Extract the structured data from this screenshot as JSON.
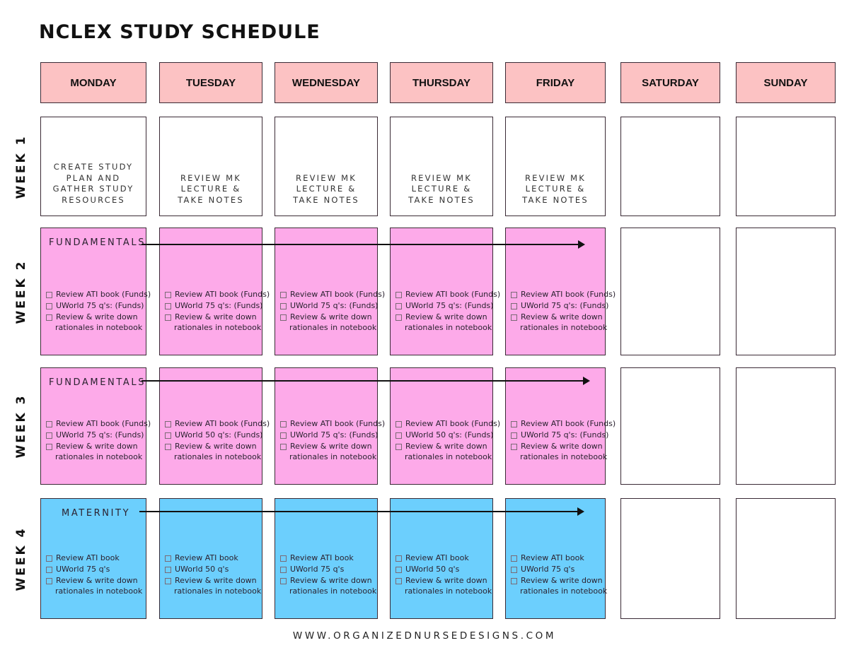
{
  "title": "NCLEX STUDY SCHEDULE",
  "days": [
    "MONDAY",
    "TUESDAY",
    "WEDNESDAY",
    "THURSDAY",
    "FRIDAY",
    "SATURDAY",
    "SUNDAY"
  ],
  "colors": {
    "header": "#fcc2c3",
    "fundamentals": "#fdaae9",
    "maternity": "#6ccffd",
    "border": "#3a2a35"
  },
  "weeks": [
    {
      "label": "WEEK 1",
      "cells": [
        {
          "text": [
            "CREATE STUDY",
            "PLAN AND",
            "GATHER STUDY",
            "RESOURCES"
          ]
        },
        {
          "text": [
            "REVIEW MK",
            "LECTURE &",
            "TAKE NOTES"
          ]
        },
        {
          "text": [
            "REVIEW MK",
            "LECTURE &",
            "TAKE NOTES"
          ]
        },
        {
          "text": [
            "REVIEW MK",
            "LECTURE &",
            "TAKE NOTES"
          ]
        },
        {
          "text": [
            "REVIEW MK",
            "LECTURE &",
            "TAKE NOTES"
          ]
        },
        {},
        {}
      ]
    },
    {
      "label": "WEEK 2",
      "topic": "FUNDAMENTALS",
      "color": "pink",
      "cells": [
        {
          "tasks": [
            "Review ATI book (Funds)",
            "UWorld 75 q's: (Funds)",
            "Review & write down",
            "rationales in notebook"
          ]
        },
        {
          "tasks": [
            "Review ATI book (Funds)",
            "UWorld 75 q's: (Funds)",
            "Review & write down",
            "rationales in notebook"
          ]
        },
        {
          "tasks": [
            "Review ATI book (Funds)",
            "UWorld 75 q's: (Funds)",
            "Review & write down",
            "rationales in notebook"
          ]
        },
        {
          "tasks": [
            "Review ATI book (Funds)",
            "UWorld 75 q's: (Funds)",
            "Review & write down",
            "rationales in notebook"
          ]
        },
        {
          "tasks": [
            "Review ATI book (Funds)",
            "UWorld 75 q's: (Funds)",
            "Review & write down",
            "rationales in notebook"
          ]
        },
        {},
        {}
      ]
    },
    {
      "label": "WEEK 3",
      "topic": "FUNDAMENTALS",
      "color": "pink",
      "cells": [
        {
          "tasks": [
            "Review ATI book (Funds)",
            "UWorld 75 q's: (Funds)",
            "Review & write down",
            "rationales in notebook"
          ]
        },
        {
          "tasks": [
            "Review ATI book (Funds)",
            "UWorld 50 q's: (Funds)",
            "Review & write down",
            "rationales in notebook"
          ]
        },
        {
          "tasks": [
            "Review ATI book (Funds)",
            "UWorld 75 q's: (Funds)",
            "Review & write down",
            "rationales in notebook"
          ]
        },
        {
          "tasks": [
            "Review ATI book (Funds)",
            "UWorld 50 q's: (Funds)",
            "Review & write down",
            "rationales in notebook"
          ]
        },
        {
          "tasks": [
            "Review ATI book (Funds)",
            "UWorld 75 q's: (Funds)",
            "Review & write down",
            "rationales in notebook"
          ]
        },
        {},
        {}
      ]
    },
    {
      "label": "WEEK 4",
      "topic": "MATERNITY",
      "color": "blue",
      "cells": [
        {
          "tasks": [
            "Review ATI book",
            "UWorld 75 q's",
            "Review & write down",
            "rationales in notebook"
          ]
        },
        {
          "tasks": [
            "Review ATI book",
            "UWorld 50 q's",
            "Review & write down",
            "rationales in notebook"
          ]
        },
        {
          "tasks": [
            "Review ATI book",
            "UWorld 75 q's",
            "Review & write down",
            "rationales in notebook"
          ]
        },
        {
          "tasks": [
            "Review ATI book",
            "UWorld 50 q's",
            "Review & write down",
            "rationales in notebook"
          ]
        },
        {
          "tasks": [
            "Review ATI book",
            "UWorld 75 q's",
            "Review & write down",
            "rationales in notebook"
          ]
        },
        {},
        {}
      ]
    }
  ],
  "footer": "WWW.ORGANIZEDNURSEDESIGNS.COM"
}
